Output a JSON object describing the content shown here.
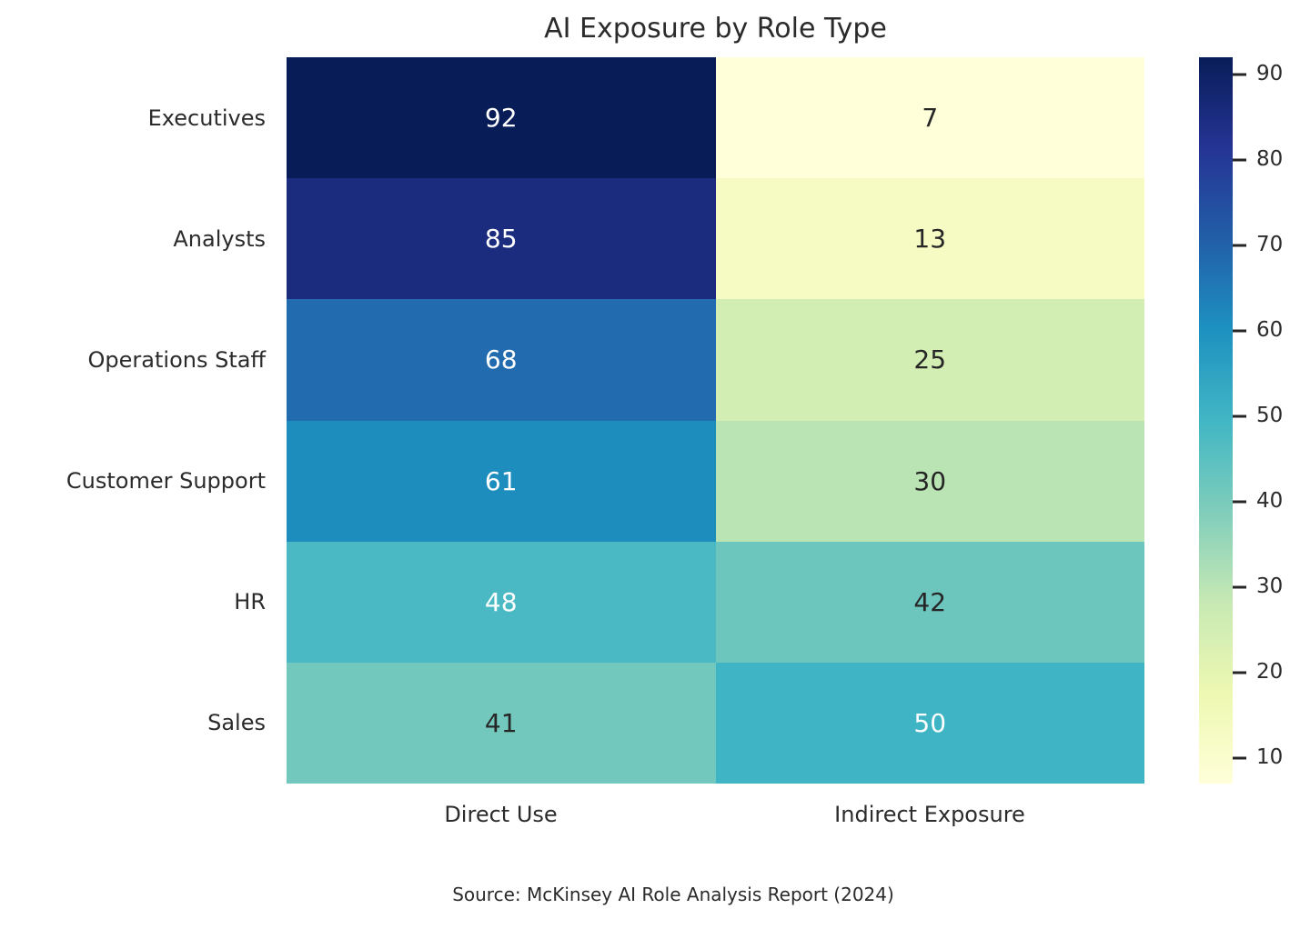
{
  "title": "AI Exposure by Role Type",
  "source_note": "Source: McKinsey AI Role Analysis Report (2024)",
  "chart_data": {
    "type": "heatmap",
    "title": "AI Exposure by Role Type",
    "rows": [
      "Executives",
      "Analysts",
      "Operations Staff",
      "Customer Support",
      "HR",
      "Sales"
    ],
    "columns": [
      "Direct Use",
      "Indirect Exposure"
    ],
    "values": [
      [
        92,
        7
      ],
      [
        85,
        13
      ],
      [
        68,
        25
      ],
      [
        61,
        30
      ],
      [
        48,
        42
      ],
      [
        41,
        50
      ]
    ],
    "cell_colors": [
      [
        "#081d58",
        "#ffffd9"
      ],
      [
        "#1b2c7f",
        "#f5fbc2"
      ],
      [
        "#216bae",
        "#d3eeb3"
      ],
      [
        "#1d8dbe",
        "#bbe4b5"
      ],
      [
        "#4ab9c3",
        "#6dc6be"
      ],
      [
        "#73c8bd",
        "#3fb4c4"
      ]
    ],
    "cell_text_colors": [
      [
        "#ffffff",
        "#262626"
      ],
      [
        "#ffffff",
        "#262626"
      ],
      [
        "#ffffff",
        "#262626"
      ],
      [
        "#ffffff",
        "#262626"
      ],
      [
        "#ffffff",
        "#262626"
      ],
      [
        "#262626",
        "#ffffff"
      ]
    ],
    "colormap": "YlGnBu",
    "colorbar": {
      "vmin": 7,
      "vmax": 92,
      "ticks": [
        90,
        80,
        70,
        60,
        50,
        40,
        30,
        20,
        10
      ],
      "gradient_stops_bottom_to_top": [
        "#ffffd9",
        "#edf8b1",
        "#c7e9b4",
        "#7fcdbb",
        "#41b6c4",
        "#1d91c0",
        "#225ea8",
        "#253494",
        "#081d58"
      ]
    },
    "legend_position": "right",
    "grid": false,
    "annotations_shown": true
  }
}
